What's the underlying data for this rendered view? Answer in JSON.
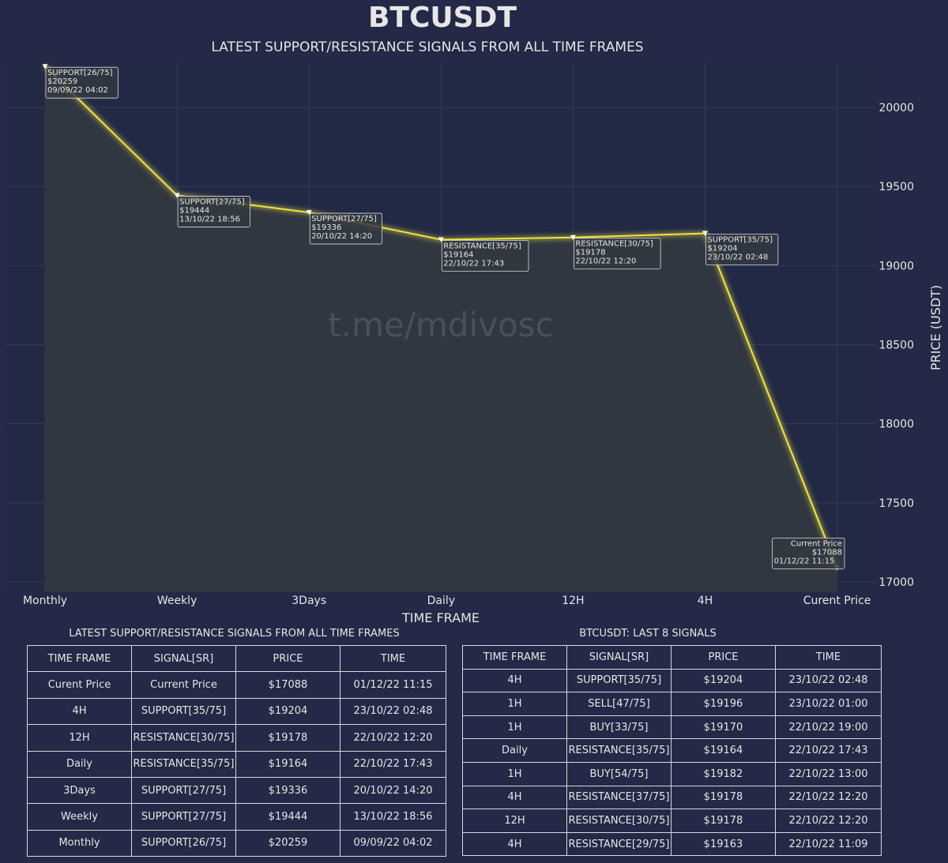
{
  "title": "BTCUSDT",
  "subtitle": "LATEST SUPPORT/RESISTANCE SIGNALS FROM ALL TIME FRAMES",
  "watermark": "t.me/mdivosc",
  "colors": {
    "background": "#232946",
    "plot_background": "#222944",
    "fill": "#333841",
    "line": "#f0e442",
    "grid": "#343b5a",
    "text": "#e6e6e6"
  },
  "chart_data": {
    "type": "area",
    "title": "BTCUSDT",
    "subtitle": "LATEST SUPPORT/RESISTANCE SIGNALS FROM ALL TIME FRAMES",
    "xlabel": "TIME FRAME",
    "ylabel": "PRICE (USDT)",
    "categories": [
      "Monthly",
      "Weekly",
      "3Days",
      "Daily",
      "12H",
      "4H",
      "Curent Price"
    ],
    "values": [
      20259,
      19444,
      19336,
      19164,
      19178,
      19204,
      17088
    ],
    "ylim": [
      16935,
      20280
    ],
    "yticks": [
      "17000",
      "17500",
      "18000",
      "18500",
      "19000",
      "19500",
      "20000"
    ],
    "y_axis_position": "right",
    "grid": true,
    "annotations": [
      {
        "label": "SUPPORT[26/75]",
        "price": "$20259",
        "time": "09/09/22 04:02"
      },
      {
        "label": "SUPPORT[27/75]",
        "price": "$19444",
        "time": "13/10/22 18:56"
      },
      {
        "label": "SUPPORT[27/75]",
        "price": "$19336",
        "time": "20/10/22 14:20"
      },
      {
        "label": "RESISTANCE[35/75]",
        "price": "$19164",
        "time": "22/10/22 17:43"
      },
      {
        "label": "RESISTANCE[30/75]",
        "price": "$19178",
        "time": "22/10/22 12:20"
      },
      {
        "label": "SUPPORT[35/75]",
        "price": "$19204",
        "time": "23/10/22 02:48"
      },
      {
        "label": "Current Price",
        "price": "$17088",
        "time": "01/12/22 11:15"
      }
    ]
  },
  "left_table": {
    "caption": "LATEST SUPPORT/RESISTANCE SIGNALS FROM ALL TIME FRAMES",
    "headers": [
      "TIME FRAME",
      "SIGNAL[SR]",
      "PRICE",
      "TIME"
    ],
    "rows": [
      [
        "Curent Price",
        "Current Price",
        "$17088",
        "01/12/22 11:15"
      ],
      [
        "4H",
        "SUPPORT[35/75]",
        "$19204",
        "23/10/22 02:48"
      ],
      [
        "12H",
        "RESISTANCE[30/75]",
        "$19178",
        "22/10/22 12:20"
      ],
      [
        "Daily",
        "RESISTANCE[35/75]",
        "$19164",
        "22/10/22 17:43"
      ],
      [
        "3Days",
        "SUPPORT[27/75]",
        "$19336",
        "20/10/22 14:20"
      ],
      [
        "Weekly",
        "SUPPORT[27/75]",
        "$19444",
        "13/10/22 18:56"
      ],
      [
        "Monthly",
        "SUPPORT[26/75]",
        "$20259",
        "09/09/22 04:02"
      ]
    ]
  },
  "right_table": {
    "caption": "BTCUSDT: LAST 8 SIGNALS",
    "headers": [
      "TIME FRAME",
      "SIGNAL[SR]",
      "PRICE",
      "TIME"
    ],
    "rows": [
      [
        "4H",
        "SUPPORT[35/75]",
        "$19204",
        "23/10/22 02:48"
      ],
      [
        "1H",
        "SELL[47/75]",
        "$19196",
        "23/10/22 01:00"
      ],
      [
        "1H",
        "BUY[33/75]",
        "$19170",
        "22/10/22 19:00"
      ],
      [
        "Daily",
        "RESISTANCE[35/75]",
        "$19164",
        "22/10/22 17:43"
      ],
      [
        "1H",
        "BUY[54/75]",
        "$19182",
        "22/10/22 13:00"
      ],
      [
        "4H",
        "RESISTANCE[37/75]",
        "$19178",
        "22/10/22 12:20"
      ],
      [
        "12H",
        "RESISTANCE[30/75]",
        "$19178",
        "22/10/22 12:20"
      ],
      [
        "4H",
        "RESISTANCE[29/75]",
        "$19163",
        "22/10/22 11:09"
      ]
    ]
  }
}
